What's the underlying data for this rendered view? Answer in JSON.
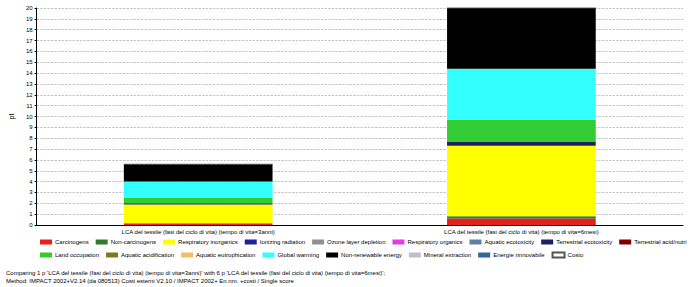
{
  "chart_data": {
    "type": "bar",
    "stacked": true,
    "ylabel": "pt",
    "categories": [
      "LCA del tessile (fasi del ciclo di vita) (tempo di vita=3anni)",
      "LCA del tessile (fasi del ciclo di vita) (tempo di vita=6mesi)"
    ],
    "series": [
      {
        "name": "Carcinogens",
        "color": "#e8201d",
        "values": [
          0.1,
          0.6
        ]
      },
      {
        "name": "Non-carcinogens",
        "color": "#2e7d2e",
        "values": [
          0.05,
          0.2
        ]
      },
      {
        "name": "Respiratory inorganics",
        "color": "#ffff00",
        "values": [
          1.75,
          6.5
        ]
      },
      {
        "name": "Ionizing radiation",
        "color": "#1f1fa0",
        "values": [
          0,
          0
        ]
      },
      {
        "name": "Ozone layer depletion",
        "color": "#909090",
        "values": [
          0,
          0
        ]
      },
      {
        "name": "Respiratory organics",
        "color": "#e040e0",
        "values": [
          0,
          0
        ]
      },
      {
        "name": "Aquatic ecotoxicity",
        "color": "#6080a0",
        "values": [
          0,
          0
        ]
      },
      {
        "name": "Terrestrial ecotoxicity",
        "color": "#202060",
        "values": [
          0.1,
          0.4
        ]
      },
      {
        "name": "Terrestrial acid/nutri",
        "color": "#800000",
        "values": [
          0,
          0
        ]
      },
      {
        "name": "Land occupation",
        "color": "#33cc33",
        "values": [
          0.5,
          2.0
        ]
      },
      {
        "name": "Aquatic acidification",
        "color": "#7a7a20",
        "values": [
          0,
          0
        ]
      },
      {
        "name": "Aquatic eutrophication",
        "color": "#f0c060",
        "values": [
          0,
          0
        ]
      },
      {
        "name": "Global warming",
        "color": "#33ffff",
        "values": [
          1.5,
          4.7
        ]
      },
      {
        "name": "Non-renewable energy",
        "color": "#000000",
        "values": [
          1.6,
          5.6
        ]
      },
      {
        "name": "Mineral extraction",
        "color": "#c0c0c0",
        "values": [
          0,
          0
        ]
      },
      {
        "name": "Energie rinnovabile",
        "color": "#336699",
        "values": [
          0,
          0
        ]
      },
      {
        "name": "Costo",
        "color": "#ffffff",
        "values": [
          0,
          0
        ]
      }
    ],
    "ylim": [
      0,
      20
    ],
    "yticks": [
      0,
      1,
      2,
      3,
      4,
      5,
      6,
      7,
      8,
      9,
      10,
      11,
      12,
      13,
      14,
      15,
      16,
      17,
      18,
      19,
      20
    ],
    "grid": true,
    "legend": "bottom",
    "annotations": [
      "Comparing 1 p 'LCA del tessile (fasi del ciclo di vita) (tempo di vita=3anni)' with 6 p 'LCA del tessile (fasi del ciclo di vita) (tempo di vita=6mesi)';",
      "Method: IMPACT 2002+V2.14 (da 080513) Costi esterni V2.10 / IMPACT 2002+ En.nm. +costi / Single score"
    ]
  }
}
